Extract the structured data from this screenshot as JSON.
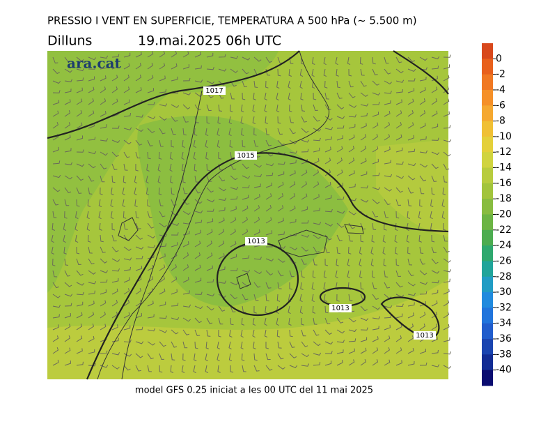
{
  "header": {
    "title": "PRESSIO I VENT EN SUPERFICIE, TEMPERATURA A 500 hPa (~ 5.500 m)",
    "day": "Dilluns",
    "date": "19.mai.2025 06h UTC"
  },
  "logo": "ara.cat",
  "isobars": [
    {
      "label": "1017"
    },
    {
      "label": "1015"
    },
    {
      "label": "1013"
    },
    {
      "label": "1013"
    },
    {
      "label": "1013"
    }
  ],
  "footer": "model GFS 0.25 iniciat a les 00 UTC del 11 mai 2025",
  "colorbar": {
    "ticks": [
      0,
      -2,
      -4,
      -6,
      -8,
      -10,
      -12,
      -14,
      -16,
      -18,
      -20,
      -22,
      -24,
      -26,
      -28,
      -30,
      -32,
      -34,
      -36,
      -38,
      -40
    ],
    "colors": [
      "#d8481c",
      "#e8601c",
      "#f07822",
      "#f59028",
      "#f5a830",
      "#f0c035",
      "#e4d03a",
      "#d0d440",
      "#b8cc3e",
      "#a2c43c",
      "#88bc40",
      "#6cb444",
      "#4cac50",
      "#2ea86e",
      "#20a49a",
      "#209cc4",
      "#208ade",
      "#2074dc",
      "#205ccc",
      "#1a44b0",
      "#122c94",
      "#0a0c70"
    ]
  }
}
